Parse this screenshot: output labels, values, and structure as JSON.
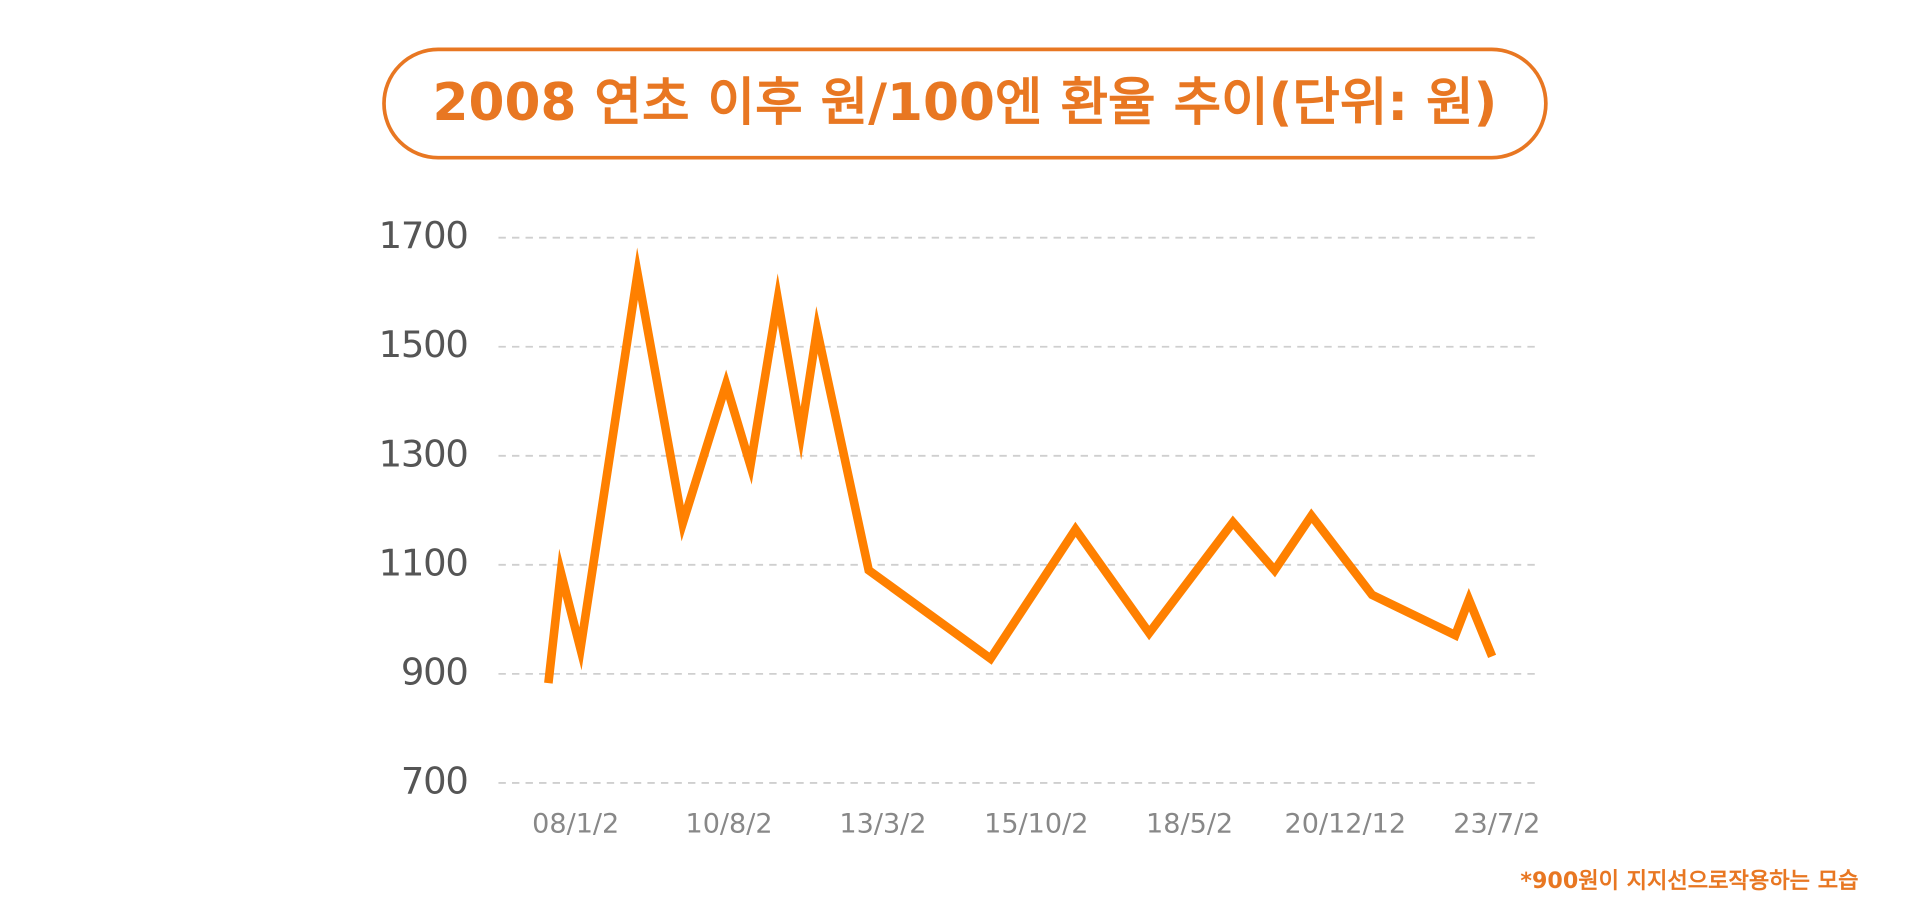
{
  "chart_data": {
    "type": "line",
    "title": "2008 연초 이후 원/100엔 환율 추이(단위: 원)",
    "note": "*900원이 지지선으로작용하는 모습",
    "x": [
      2007.54,
      2007.75,
      2008.08,
      2009.04,
      2009.8,
      2010.53,
      2010.94,
      2011.4,
      2011.79,
      2012.06,
      2012.93,
      2014.98,
      2016.41,
      2017.65,
      2019.06,
      2019.76,
      2020.38,
      2021.4,
      2022.8,
      2023.03,
      2023.42
    ],
    "values": [
      883,
      1086,
      946,
      1634,
      1176,
      1431,
      1282,
      1587,
      1341,
      1531,
      1090,
      928,
      1165,
      975,
      1178,
      1090,
      1190,
      1045,
      971,
      1036,
      932
    ],
    "color": "#ff8000",
    "xlim": [
      2006.7,
      2024.2
    ],
    "xticks": [
      {
        "value": 2008.0,
        "label": "08/1/2"
      },
      {
        "value": 2010.58,
        "label": "10/8/2"
      },
      {
        "value": 2013.17,
        "label": "13/3/2"
      },
      {
        "value": 2015.75,
        "label": "15/10/2"
      },
      {
        "value": 2018.33,
        "label": "18/5/2"
      },
      {
        "value": 2020.95,
        "label": "20/12/12"
      },
      {
        "value": 2023.5,
        "label": "23/7/2"
      }
    ],
    "ylim": [
      700,
      1700
    ],
    "yticks": [
      700,
      900,
      1100,
      1300,
      1500,
      1700
    ],
    "grid": true
  }
}
